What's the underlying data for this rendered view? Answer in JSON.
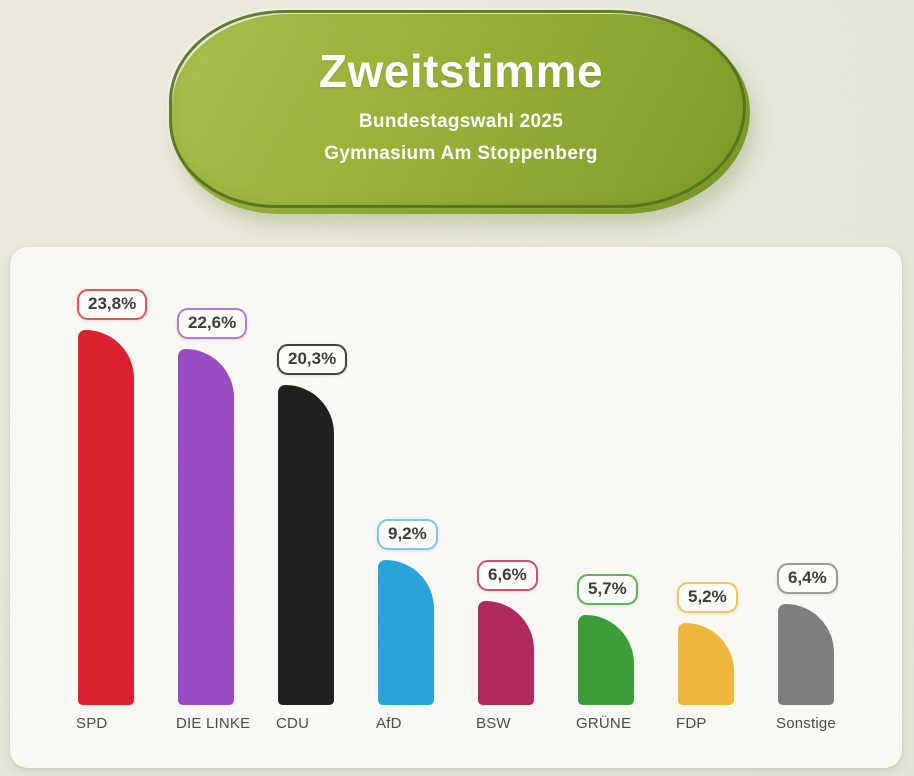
{
  "header": {
    "title": "Zweitstimme",
    "subtitle_line1": "Bundestagswahl 2025",
    "subtitle_line2": "Gymnasium Am Stoppenberg"
  },
  "colors": {
    "page_background": "#e9e9dc",
    "panel_background": "#fbfaf4",
    "blob_green_light": "#acc24e",
    "blob_green_dark": "#7e9c27",
    "blob_outline": "#54701c",
    "header_text": "#ffffff",
    "value_text": "#3d3d3d",
    "category_text": "#4b4b4b"
  },
  "chart_data": {
    "type": "bar",
    "title": "Zweitstimme",
    "subtitle": "Bundestagswahl 2025 — Gymnasium Am Stoppenberg",
    "unit": "%",
    "categories": [
      "SPD",
      "DIE LINKE",
      "CDU",
      "AfD",
      "BSW",
      "GRÜNE",
      "FDP",
      "Sonstige"
    ],
    "values": [
      23.8,
      22.6,
      20.3,
      9.2,
      6.6,
      5.7,
      5.2,
      6.4
    ],
    "value_labels": [
      "23,8%",
      "22,6%",
      "20,3%",
      "9,2%",
      "6,6%",
      "5,7%",
      "5,2%",
      "6,4%"
    ],
    "bar_colors": [
      "#dd202f",
      "#9a4cc8",
      "#212121",
      "#29a5dc",
      "#b02a5c",
      "#3b9f38",
      "#f1b93d",
      "#7f7f7f"
    ],
    "badge_border_colors": [
      "#e25563",
      "#b57cd6",
      "#414141",
      "#82c7e6",
      "#c2567c",
      "#63b560",
      "#f3c75f",
      "#9c9c9c"
    ],
    "ylim": [
      0,
      25
    ],
    "grid": false,
    "legend": false,
    "value_label_position": "above-bar"
  }
}
